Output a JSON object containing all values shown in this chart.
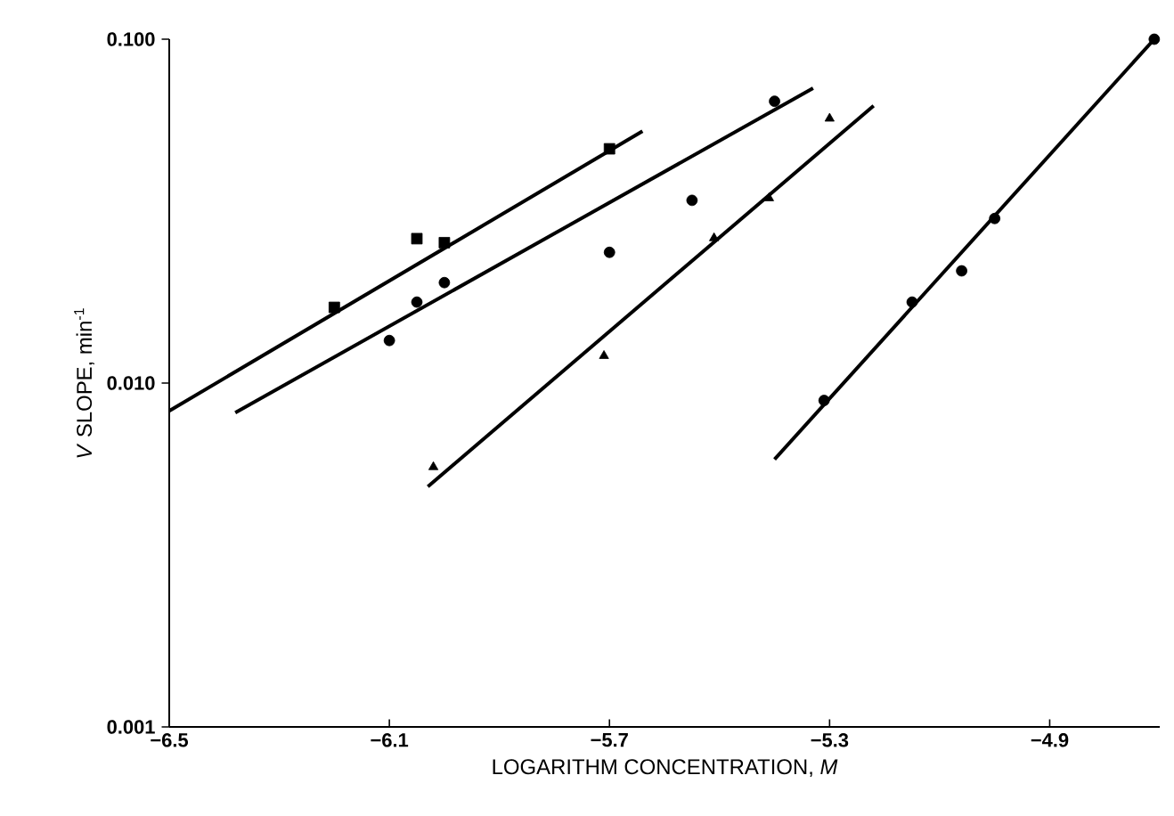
{
  "chart_data": {
    "type": "scatter",
    "xlabel": "LOGARITHM CONCENTRATION, *M*",
    "ylabel": "*V* SLOPE, min$^{-1}$",
    "log": "y",
    "xlim": [
      -6.5,
      -4.7
    ],
    "ylim": [
      0.001,
      0.1
    ],
    "xticks": [
      {
        "value": -6.5,
        "label": "−6.5"
      },
      {
        "value": -6.1,
        "label": "−6.1"
      },
      {
        "value": -5.7,
        "label": "−5.7"
      },
      {
        "value": -5.3,
        "label": "−5.3"
      },
      {
        "value": -4.9,
        "label": "−4.9"
      }
    ],
    "yticks": [
      {
        "value": 0.001,
        "label": "0.001"
      },
      {
        "value": 0.01,
        "label": "0.010"
      },
      {
        "value": 0.1,
        "label": "0.100"
      }
    ],
    "series": [
      {
        "marker": "square",
        "color": "#000000",
        "x": [
          -6.2,
          -6.05,
          -6.0,
          -5.7
        ],
        "values": [
          0.0166,
          0.0263,
          0.0256,
          0.048
        ]
      },
      {
        "marker": "circle",
        "color": "#000000",
        "x": [
          -6.1,
          -6.05,
          -6.0,
          -5.7,
          -5.55,
          -5.4
        ],
        "values": [
          0.0133,
          0.0172,
          0.0196,
          0.024,
          0.034,
          0.066
        ]
      },
      {
        "marker": "triangle",
        "color": "#000000",
        "x": [
          -6.02,
          -5.71,
          -5.51,
          -5.41,
          -5.3
        ],
        "values": [
          0.0057,
          0.012,
          0.0264,
          0.0345,
          0.0588
        ]
      },
      {
        "marker": "circle",
        "color": "#000000",
        "x": [
          -5.31,
          -5.15,
          -5.06,
          -5.0,
          -4.71
        ],
        "values": [
          0.0089,
          0.0172,
          0.0212,
          0.0301,
          0.1
        ]
      },
      {
        "type": "line",
        "color": "#000000",
        "x": [
          -6.5,
          -5.64
        ],
        "values": [
          0.0083,
          0.054
        ]
      },
      {
        "type": "line",
        "color": "#000000",
        "x": [
          -6.38,
          -5.33
        ],
        "values": [
          0.0082,
          0.072
        ]
      },
      {
        "type": "line",
        "color": "#000000",
        "x": [
          -6.03,
          -5.22
        ],
        "values": [
          0.005,
          0.064
        ]
      },
      {
        "type": "line",
        "color": "#000000",
        "x": [
          -5.4,
          -4.71
        ],
        "values": [
          0.006,
          0.1
        ]
      }
    ]
  }
}
